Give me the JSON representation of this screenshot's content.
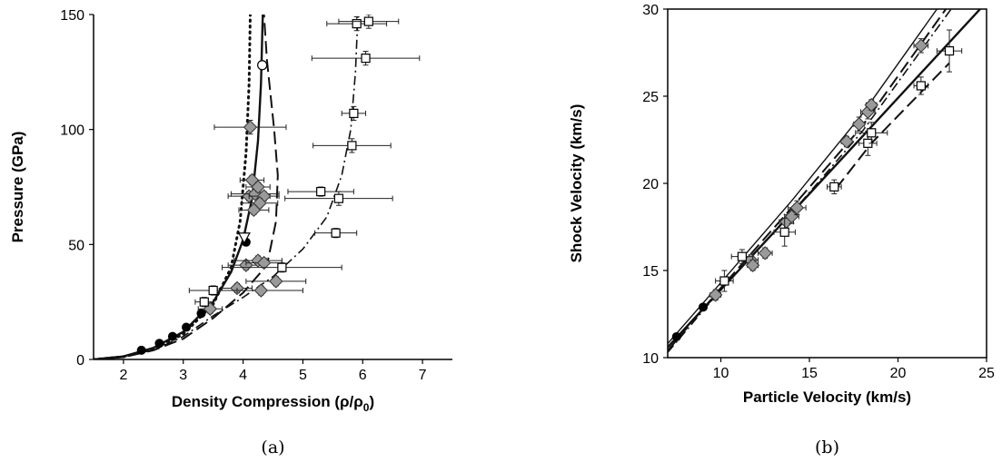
{
  "chart_data": [
    {
      "type": "scatter",
      "panel_label": "(a)",
      "xlabel": "Density Compression (ρ/ρ",
      "xlabel_sub": "0",
      "xlabel_close": ")",
      "ylabel": "Pressure (GPa)",
      "xlim": [
        1.5,
        7.5
      ],
      "ylim": [
        0,
        150
      ],
      "xticks": [
        2,
        3,
        4,
        5,
        6,
        7
      ],
      "yticks": [
        0,
        50,
        100,
        150
      ],
      "series": [
        {
          "marker": "filled-circle",
          "points": [
            [
              2.3,
              4
            ],
            [
              2.6,
              7
            ],
            [
              2.82,
              10
            ],
            [
              3.05,
              14
            ],
            [
              3.3,
              20
            ],
            [
              4.05,
              51
            ]
          ]
        },
        {
          "marker": "open-circle",
          "points": [
            [
              4.32,
              128
            ]
          ]
        },
        {
          "marker": "open-triangle",
          "points": [
            [
              4.02,
              53
            ]
          ]
        },
        {
          "marker": "gray-diamond",
          "points": [
            {
              "x": 3.45,
              "y": 22,
              "xerr": 0.2,
              "yerr": 2
            },
            {
              "x": 3.9,
              "y": 31,
              "xerr": 0.25,
              "yerr": 2
            },
            {
              "x": 4.05,
              "y": 41,
              "xerr": 0.3,
              "yerr": 2
            },
            {
              "x": 4.25,
              "y": 43,
              "xerr": 0.4,
              "yerr": 2
            },
            {
              "x": 4.35,
              "y": 42,
              "xerr": 0.3,
              "yerr": 2
            },
            {
              "x": 4.3,
              "y": 30,
              "xerr": 0.7,
              "yerr": 2
            },
            {
              "x": 4.55,
              "y": 34,
              "xerr": 0.5,
              "yerr": 2
            },
            {
              "x": 4.1,
              "y": 71,
              "xerr": 0.35,
              "yerr": 2
            },
            {
              "x": 4.2,
              "y": 72,
              "xerr": 0.4,
              "yerr": 2
            },
            {
              "x": 4.35,
              "y": 71,
              "xerr": 0.25,
              "yerr": 2
            },
            {
              "x": 4.28,
              "y": 68,
              "xerr": 0.3,
              "yerr": 2
            },
            {
              "x": 4.18,
              "y": 65,
              "xerr": 0.25,
              "yerr": 2
            },
            {
              "x": 4.15,
              "y": 78,
              "xerr": 0.2,
              "yerr": 2
            },
            {
              "x": 4.25,
              "y": 75,
              "xerr": 0.2,
              "yerr": 2
            },
            {
              "x": 4.12,
              "y": 101,
              "xerr": 0.6,
              "yerr": 3
            }
          ]
        },
        {
          "marker": "open-square",
          "points": [
            {
              "x": 3.35,
              "y": 25,
              "xerr": 0.15,
              "yerr": 2
            },
            {
              "x": 3.5,
              "y": 30,
              "xerr": 0.4,
              "yerr": 2
            },
            {
              "x": 4.65,
              "y": 40,
              "xerr": 1.0,
              "yerr": 2
            },
            {
              "x": 5.55,
              "y": 55,
              "xerr": 0.35,
              "yerr": 2
            },
            {
              "x": 5.6,
              "y": 70,
              "xerr": 0.9,
              "yerr": 3
            },
            {
              "x": 5.3,
              "y": 73,
              "xerr": 0.55,
              "yerr": 2
            },
            {
              "x": 5.82,
              "y": 93,
              "xerr": 0.65,
              "yerr": 3
            },
            {
              "x": 5.85,
              "y": 107,
              "xerr": 0.2,
              "yerr": 3
            },
            {
              "x": 6.05,
              "y": 131,
              "xerr": 0.9,
              "yerr": 3
            },
            {
              "x": 5.9,
              "y": 146,
              "xerr": 0.5,
              "yerr": 3
            },
            {
              "x": 6.1,
              "y": 147,
              "xerr": 0.5,
              "yerr": 3
            }
          ]
        }
      ],
      "fits": [
        {
          "style": "solid",
          "points": [
            [
              1.5,
              0
            ],
            [
              2.0,
              1.3
            ],
            [
              2.5,
              5
            ],
            [
              3.0,
              12
            ],
            [
              3.5,
              25
            ],
            [
              3.8,
              38
            ],
            [
              4.0,
              52
            ],
            [
              4.15,
              70
            ],
            [
              4.25,
              95
            ],
            [
              4.3,
              120
            ],
            [
              4.32,
              140
            ],
            [
              4.33,
              150
            ]
          ]
        },
        {
          "style": "dotted",
          "points": [
            [
              1.5,
              0
            ],
            [
              2.0,
              1.2
            ],
            [
              2.5,
              4.5
            ],
            [
              3.0,
              11
            ],
            [
              3.5,
              24
            ],
            [
              3.8,
              40
            ],
            [
              3.95,
              60
            ],
            [
              4.05,
              90
            ],
            [
              4.1,
              120
            ],
            [
              4.12,
              150
            ]
          ]
        },
        {
          "style": "long-dash",
          "points": [
            [
              1.5,
              0
            ],
            [
              2.0,
              1
            ],
            [
              2.5,
              4
            ],
            [
              3.0,
              9
            ],
            [
              3.5,
              18
            ],
            [
              4.0,
              29
            ],
            [
              4.4,
              41
            ],
            [
              4.55,
              60
            ],
            [
              4.58,
              80
            ],
            [
              4.52,
              100
            ],
            [
              4.4,
              130
            ],
            [
              4.35,
              150
            ]
          ]
        },
        {
          "style": "dash-dot",
          "points": [
            [
              1.5,
              0
            ],
            [
              2.0,
              1
            ],
            [
              2.5,
              4
            ],
            [
              3.0,
              10
            ],
            [
              3.5,
              19
            ],
            [
              4.0,
              27
            ],
            [
              4.5,
              36
            ],
            [
              5.0,
              48
            ],
            [
              5.4,
              62
            ],
            [
              5.65,
              80
            ],
            [
              5.8,
              100
            ],
            [
              5.88,
              125
            ],
            [
              5.92,
              150
            ]
          ]
        }
      ]
    },
    {
      "type": "scatter",
      "panel_label": "(b)",
      "xlabel": "Particle Velocity (km/s)",
      "ylabel": "Shock Velocity (km/s)",
      "xlim": [
        7,
        25
      ],
      "ylim": [
        10,
        30
      ],
      "xticks": [
        10,
        15,
        20,
        25
      ],
      "yticks": [
        10,
        15,
        20,
        25,
        30
      ],
      "series": [
        {
          "marker": "filled-circle",
          "points": [
            [
              7.5,
              11.2
            ],
            [
              9.0,
              12.9
            ]
          ]
        },
        {
          "marker": "gray-diamond",
          "points": [
            {
              "x": 9.7,
              "y": 13.6,
              "xerr": 0.3,
              "yerr": 0.3
            },
            {
              "x": 11.7,
              "y": 15.6,
              "xerr": 0.4,
              "yerr": 0.3
            },
            {
              "x": 11.8,
              "y": 15.3,
              "xerr": 0.3,
              "yerr": 0.3
            },
            {
              "x": 12.5,
              "y": 16.0,
              "xerr": 0.4,
              "yerr": 0.3
            },
            {
              "x": 13.7,
              "y": 17.8,
              "xerr": 0.4,
              "yerr": 0.4
            },
            {
              "x": 14.0,
              "y": 18.1,
              "xerr": 0.4,
              "yerr": 0.4
            },
            {
              "x": 14.3,
              "y": 18.6,
              "xerr": 0.5,
              "yerr": 0.4
            },
            {
              "x": 17.1,
              "y": 22.4,
              "xerr": 0.3,
              "yerr": 0.3
            },
            {
              "x": 17.8,
              "y": 23.4,
              "xerr": 0.3,
              "yerr": 0.4
            },
            {
              "x": 18.3,
              "y": 24.1,
              "xerr": 0.4,
              "yerr": 0.4
            },
            {
              "x": 18.5,
              "y": 24.5,
              "xerr": 0.3,
              "yerr": 0.3
            },
            {
              "x": 21.3,
              "y": 27.9,
              "xerr": 0.4,
              "yerr": 0.4
            }
          ]
        },
        {
          "marker": "open-square",
          "points": [
            {
              "x": 10.2,
              "y": 14.4,
              "xerr": 0.5,
              "yerr": 0.6
            },
            {
              "x": 11.2,
              "y": 15.8,
              "xerr": 0.6,
              "yerr": 0.4
            },
            {
              "x": 13.6,
              "y": 17.2,
              "xerr": 0.6,
              "yerr": 0.8
            },
            {
              "x": 16.4,
              "y": 19.8,
              "xerr": 0.4,
              "yerr": 0.4
            },
            {
              "x": 18.3,
              "y": 22.3,
              "xerr": 0.5,
              "yerr": 0.7
            },
            {
              "x": 18.5,
              "y": 22.9,
              "xerr": 0.9,
              "yerr": 0.6
            },
            {
              "x": 21.3,
              "y": 25.6,
              "xerr": 0.4,
              "yerr": 0.5
            },
            {
              "x": 22.9,
              "y": 27.6,
              "xerr": 0.7,
              "yerr": 1.2
            }
          ]
        }
      ],
      "fits": [
        {
          "style": "solid",
          "points": [
            [
              7,
              10.6
            ],
            [
              25,
              30.4
            ]
          ]
        },
        {
          "style": "long-dash",
          "points": [
            [
              7,
              10.4
            ],
            [
              10,
              14.0
            ],
            [
              14,
              18.6
            ],
            [
              18,
              23.3
            ],
            [
              22.7,
              30
            ]
          ]
        },
        {
          "style": "dash-dot",
          "points": [
            [
              7,
              10.3
            ],
            [
              10,
              13.9
            ],
            [
              14,
              18.3
            ],
            [
              18,
              23.0
            ],
            [
              23.0,
              30
            ]
          ]
        },
        {
          "style": "solid-thin",
          "points": [
            [
              7,
              10.8
            ],
            [
              10,
              14.3
            ],
            [
              14,
              19.0
            ],
            [
              18,
              24.0
            ],
            [
              22.2,
              30
            ]
          ]
        },
        {
          "style": "long-dash-lower",
          "points": [
            [
              16.5,
              19.7
            ],
            [
              18.5,
              22.3
            ],
            [
              22.9,
              26.9
            ]
          ]
        }
      ]
    }
  ]
}
